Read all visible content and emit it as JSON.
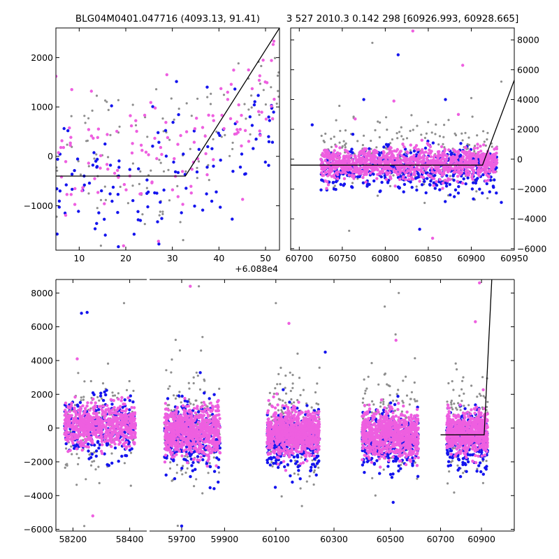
{
  "colors": {
    "pink": "#ee5fe0",
    "blue": "#1414ee",
    "gray": "#8e8e8e",
    "model_line": "#000000"
  },
  "chart_data": [
    {
      "id": "top-left",
      "type": "scatter",
      "title": "BLG04M0401.047716 (4093.13, 91.41)",
      "xlabel": "",
      "ylabel": "",
      "x_offset_label": "+6.088e4",
      "xlim": [
        5,
        53
      ],
      "ylim": [
        -1900,
        2600
      ],
      "xticks": [
        10,
        20,
        30,
        40,
        50
      ],
      "yticks": [
        -1000,
        0,
        1000,
        2000
      ],
      "xtick_labels": [
        "10",
        "20",
        "30",
        "40",
        "50"
      ],
      "ytick_labels": [
        "−1000",
        "0",
        "1000",
        "2000"
      ],
      "y_axis_side": "left",
      "series": [
        {
          "name": "gray",
          "color": "gray",
          "clusters": [
            {
              "x0": 5,
              "x1": 33,
              "y": 0,
              "sd": 750,
              "n": 75,
              "yfrac": 0
            }
          ],
          "trend": {
            "x0": 33,
            "x1": 53,
            "y0": -100,
            "y1": 1600,
            "n": 45,
            "sd": 550
          }
        },
        {
          "name": "blue",
          "color": "blue",
          "clusters": [
            {
              "x0": 5,
              "x1": 33,
              "y": -500,
              "sd": 700,
              "n": 80
            }
          ],
          "trend": {
            "x0": 33,
            "x1": 53,
            "y0": -500,
            "y1": 900,
            "n": 45,
            "sd": 600
          }
        },
        {
          "name": "pink",
          "color": "pink",
          "clusters": [
            {
              "x0": 5,
              "x1": 33,
              "y": -150,
              "sd": 650,
              "n": 75
            }
          ],
          "trend": {
            "x0": 33,
            "x1": 53,
            "y0": -100,
            "y1": 1500,
            "n": 55,
            "sd": 600
          }
        }
      ],
      "model": {
        "x": [
          5,
          32.8,
          53
        ],
        "y": [
          -400,
          -400,
          2600
        ]
      }
    },
    {
      "id": "top-right",
      "type": "scatter",
      "title": "3 527 2010.3 0.142 298 [60926.993, 60928.665]",
      "xlabel": "",
      "ylabel": "",
      "xlim": [
        60690,
        60950
      ],
      "ylim": [
        -6100,
        8800
      ],
      "xticks": [
        60700,
        60750,
        60800,
        60850,
        60900,
        60950
      ],
      "yticks": [
        -6000,
        -4000,
        -2000,
        0,
        2000,
        4000,
        6000,
        8000
      ],
      "xtick_labels": [
        "60700",
        "60750",
        "60800",
        "60850",
        "60900",
        "60950"
      ],
      "ytick_labels": [
        "−6000",
        "−4000",
        "−2000",
        "0",
        "2000",
        "4000",
        "6000",
        "8000"
      ],
      "y_axis_side": "right",
      "series": [
        {
          "name": "gray",
          "color": "gray",
          "clusters": [
            {
              "x0": 60725,
              "x1": 60930,
              "y": 200,
              "sd": 1100,
              "n": 260
            }
          ]
        },
        {
          "name": "blue",
          "color": "blue",
          "clusters": [
            {
              "x0": 60725,
              "x1": 60930,
              "y": -700,
              "sd": 750,
              "n": 480
            }
          ]
        },
        {
          "name": "pink",
          "color": "pink",
          "clusters": [
            {
              "x0": 60725,
              "x1": 60930,
              "y": -300,
              "sd": 500,
              "n": 1100
            }
          ]
        }
      ],
      "extra_points": {
        "blue": [
          [
            60815,
            7000
          ],
          [
            60775,
            4000
          ],
          [
            60870,
            4000
          ],
          [
            60715,
            2300
          ],
          [
            60840,
            -4700
          ],
          [
            60935,
            -2900
          ]
        ],
        "pink": [
          [
            60832,
            8600
          ],
          [
            60890,
            6300
          ],
          [
            60885,
            3000
          ],
          [
            60855,
            -5300
          ],
          [
            60765,
            2700
          ],
          [
            60810,
            3900
          ]
        ],
        "gray": [
          [
            60785,
            7800
          ],
          [
            60935,
            5200
          ],
          [
            60900,
            4100
          ],
          [
            60758,
            -4800
          ]
        ]
      },
      "model": {
        "x": [
          60690,
          60913,
          60950
        ],
        "y": [
          -400,
          -400,
          5300
        ]
      }
    },
    {
      "id": "bottom",
      "type": "scatter",
      "title": "",
      "xlabel": "",
      "ylabel": "",
      "ylim": [
        -6100,
        8800
      ],
      "yticks": [
        -6000,
        -4000,
        -2000,
        0,
        2000,
        4000,
        6000,
        8000
      ],
      "ytick_labels": [
        "−6000",
        "−4000",
        "−2000",
        "0",
        "2000",
        "4000",
        "6000",
        "8000"
      ],
      "y_axis_side": "left",
      "broken_axis_segments": [
        {
          "xlim": [
            58140,
            58460
          ],
          "xticks": [
            58200,
            58400
          ],
          "xtick_labels": [
            "58200",
            "58400"
          ]
        },
        {
          "xlim": [
            59550,
            59990
          ],
          "xticks": [
            59700,
            59900
          ],
          "xtick_labels": [
            "59700",
            "59900"
          ]
        },
        {
          "xlim": [
            59990,
            60300
          ],
          "xticks": [
            60100
          ],
          "xtick_labels": [
            "60100"
          ]
        },
        {
          "xlim": [
            60300,
            60620
          ],
          "xticks": [
            60300,
            60500
          ],
          "xtick_labels": [
            "60300",
            "60500"
          ]
        },
        {
          "xlim": [
            60620,
            61060
          ],
          "xticks": [
            60700,
            60900
          ],
          "xtick_labels": [
            "60700",
            "60900"
          ]
        }
      ],
      "series": [
        {
          "name": "gray",
          "color": "gray",
          "clusters": [
            {
              "x0": 58170,
              "x1": 58420,
              "y": 300,
              "sd": 1400,
              "n": 140
            },
            {
              "x0": 59620,
              "x1": 59880,
              "y": 300,
              "sd": 1800,
              "n": 170
            },
            {
              "x0": 60070,
              "x1": 60250,
              "y": 200,
              "sd": 1600,
              "n": 160
            },
            {
              "x0": 60400,
              "x1": 60600,
              "y": 200,
              "sd": 1500,
              "n": 150
            },
            {
              "x0": 60730,
              "x1": 60930,
              "y": 200,
              "sd": 1600,
              "n": 130
            }
          ]
        },
        {
          "name": "blue",
          "color": "blue",
          "clusters": [
            {
              "x0": 58170,
              "x1": 58420,
              "y": 0,
              "sd": 900,
              "n": 260
            },
            {
              "x0": 59620,
              "x1": 59880,
              "y": -500,
              "sd": 1000,
              "n": 320
            },
            {
              "x0": 60070,
              "x1": 60250,
              "y": -700,
              "sd": 900,
              "n": 320
            },
            {
              "x0": 60400,
              "x1": 60600,
              "y": -800,
              "sd": 900,
              "n": 300
            },
            {
              "x0": 60730,
              "x1": 60930,
              "y": -700,
              "sd": 800,
              "n": 280
            }
          ]
        },
        {
          "name": "pink",
          "color": "pink",
          "clusters": [
            {
              "x0": 58170,
              "x1": 58420,
              "y": 150,
              "sd": 600,
              "n": 700
            },
            {
              "x0": 59620,
              "x1": 59880,
              "y": -200,
              "sd": 700,
              "n": 800
            },
            {
              "x0": 60070,
              "x1": 60250,
              "y": -300,
              "sd": 650,
              "n": 850
            },
            {
              "x0": 60400,
              "x1": 60600,
              "y": -400,
              "sd": 650,
              "n": 800
            },
            {
              "x0": 60730,
              "x1": 60930,
              "y": -300,
              "sd": 600,
              "n": 650
            }
          ]
        }
      ],
      "extra_points": {
        "blue": [
          [
            58230,
            6800
          ],
          [
            58250,
            6850
          ],
          [
            59700,
            -5800
          ],
          [
            60510,
            -4400
          ],
          [
            60270,
            4500
          ],
          [
            59870,
            -3200
          ]
        ],
        "pink": [
          [
            59740,
            8400
          ],
          [
            60890,
            8600
          ],
          [
            60870,
            6300
          ],
          [
            60145,
            6200
          ],
          [
            60520,
            5200
          ],
          [
            58215,
            4100
          ],
          [
            58270,
            -5200
          ]
        ],
        "gray": [
          [
            58380,
            7400
          ],
          [
            59780,
            8400
          ],
          [
            60480,
            7200
          ],
          [
            60100,
            7400
          ],
          [
            60530,
            8000
          ],
          [
            58240,
            -5800
          ]
        ]
      },
      "model": {
        "x": [
          60700,
          60913,
          60950
        ],
        "y": [
          -400,
          -400,
          8800
        ]
      }
    }
  ]
}
